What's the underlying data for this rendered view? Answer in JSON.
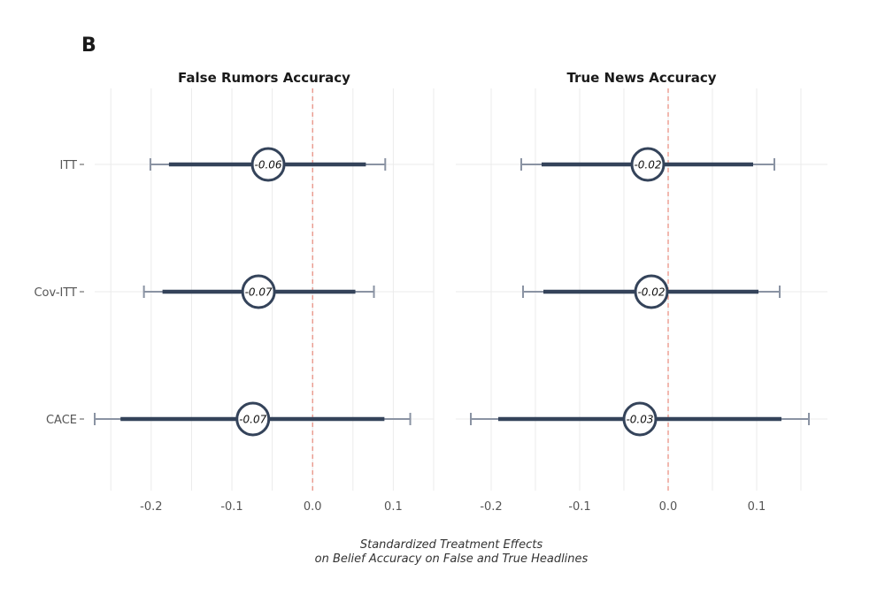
{
  "panel_letter": "B",
  "caption": {
    "line1": "Standardized Treatment Effects",
    "line2": "on Belief Accuracy on False and True Headlines"
  },
  "colors": {
    "inner_bar": "#34435a",
    "outer_bar": "#8a93a3",
    "reference_line": "#e8887a",
    "grid": "#ebebeb"
  },
  "chart_data": [
    {
      "type": "forest",
      "title": "False Rumors Accuracy",
      "xlim": [
        -0.27,
        0.15
      ],
      "xticks": [
        -0.2,
        -0.1,
        0.0,
        0.1
      ],
      "xtick_labels": [
        "-0.2",
        "-0.1",
        "0.0",
        "0.1"
      ],
      "reference_x": 0.0,
      "rows": [
        {
          "label": "ITT",
          "estimate": -0.055,
          "estimate_label": "-0.06",
          "ci90": [
            -0.178,
            0.066
          ],
          "ci95": [
            -0.201,
            0.09
          ]
        },
        {
          "label": "Cov-ITT",
          "estimate": -0.067,
          "estimate_label": "-0.07",
          "ci90": [
            -0.186,
            0.053
          ],
          "ci95": [
            -0.209,
            0.076
          ]
        },
        {
          "label": "CACE",
          "estimate": -0.074,
          "estimate_label": "-0.07",
          "ci90": [
            -0.238,
            0.089
          ],
          "ci95": [
            -0.27,
            0.121
          ]
        }
      ]
    },
    {
      "type": "forest",
      "title": "True News Accuracy",
      "xlim": [
        -0.24,
        0.18
      ],
      "xticks": [
        -0.2,
        -0.1,
        0.0,
        0.1
      ],
      "xtick_labels": [
        "-0.2",
        "-0.1",
        "0.0",
        "0.1"
      ],
      "reference_x": 0.0,
      "rows": [
        {
          "label": "ITT",
          "estimate": -0.023,
          "estimate_label": "-0.02",
          "ci90": [
            -0.143,
            0.096
          ],
          "ci95": [
            -0.166,
            0.12
          ]
        },
        {
          "label": "Cov-ITT",
          "estimate": -0.019,
          "estimate_label": "-0.02",
          "ci90": [
            -0.141,
            0.102
          ],
          "ci95": [
            -0.164,
            0.126
          ]
        },
        {
          "label": "CACE",
          "estimate": -0.032,
          "estimate_label": "-0.03",
          "ci90": [
            -0.192,
            0.128
          ],
          "ci95": [
            -0.223,
            0.159
          ]
        }
      ]
    }
  ]
}
